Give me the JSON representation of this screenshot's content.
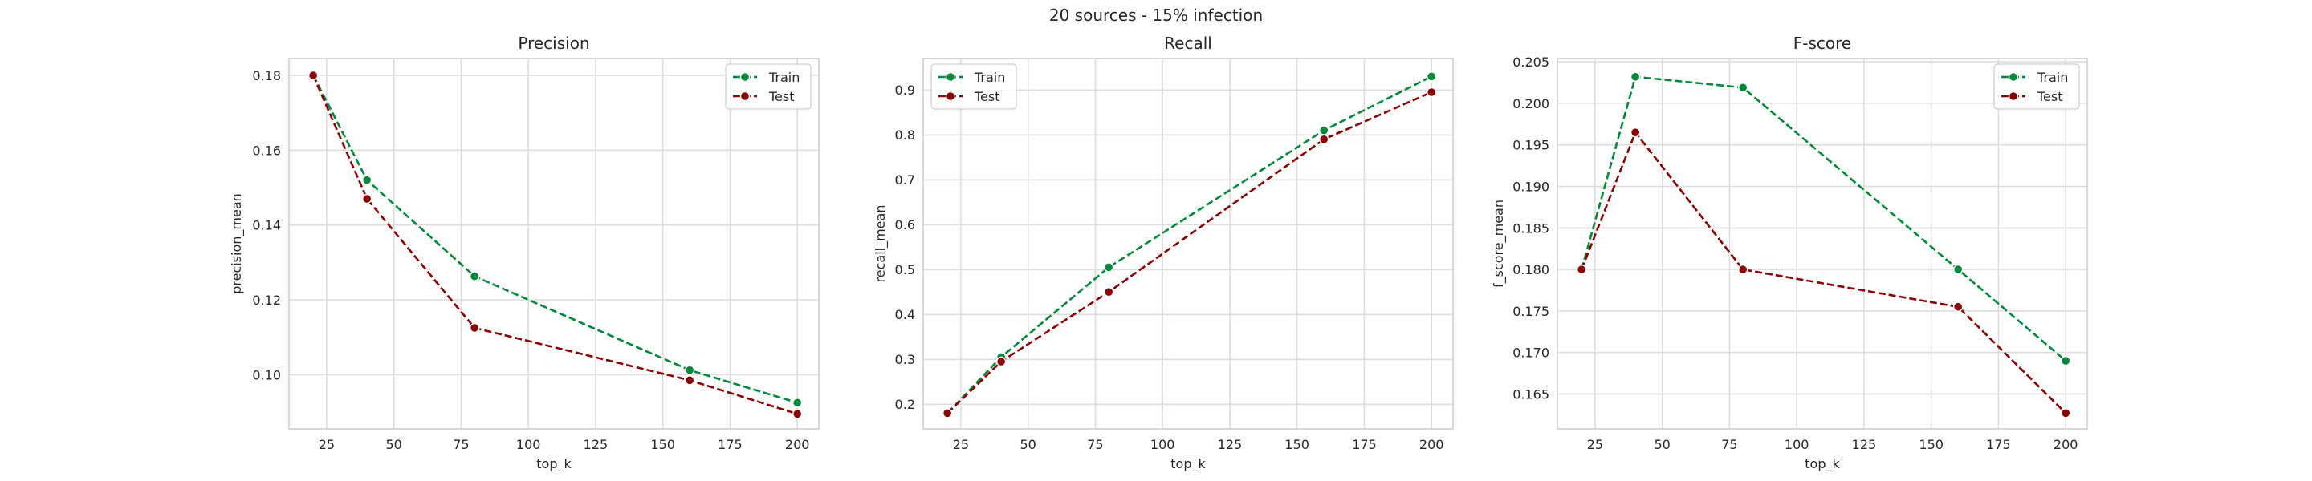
{
  "figure": {
    "suptitle": "20 sources - 15% infection"
  },
  "style": {
    "grid_color": "#dcdcdc",
    "spine_color": "#cccccc",
    "train_color": "#008a3a",
    "test_color": "#8b0000"
  },
  "chart_data": [
    {
      "type": "line",
      "title": "Precision",
      "xlabel": "top_k",
      "ylabel": "precision_mean",
      "x": [
        20,
        40,
        80,
        160,
        200
      ],
      "xlim": [
        11,
        208
      ],
      "ylim": [
        0.0855,
        0.1845
      ],
      "xticks": [
        25,
        50,
        75,
        100,
        125,
        150,
        175,
        200
      ],
      "yticks": [
        0.1,
        0.12,
        0.14,
        0.16,
        0.18
      ],
      "ytick_labels": [
        "0.10",
        "0.12",
        "0.14",
        "0.16",
        "0.18"
      ],
      "grid": true,
      "legend_position": "top-right",
      "series": [
        {
          "name": "Train",
          "values": [
            0.18,
            0.152,
            0.1263,
            0.1012,
            0.0925
          ]
        },
        {
          "name": "Test",
          "values": [
            0.18,
            0.147,
            0.1125,
            0.0985,
            0.0895
          ]
        }
      ]
    },
    {
      "type": "line",
      "title": "Recall",
      "xlabel": "top_k",
      "ylabel": "recall_mean",
      "x": [
        20,
        40,
        80,
        160,
        200
      ],
      "xlim": [
        11,
        208
      ],
      "ylim": [
        0.145,
        0.97
      ],
      "xticks": [
        25,
        50,
        75,
        100,
        125,
        150,
        175,
        200
      ],
      "yticks": [
        0.2,
        0.3,
        0.4,
        0.5,
        0.6,
        0.7,
        0.8,
        0.9
      ],
      "ytick_labels": [
        "0.2",
        "0.3",
        "0.4",
        "0.5",
        "0.6",
        "0.7",
        "0.8",
        "0.9"
      ],
      "grid": true,
      "legend_position": "top-left",
      "series": [
        {
          "name": "Train",
          "values": [
            0.18,
            0.305,
            0.505,
            0.81,
            0.93
          ]
        },
        {
          "name": "Test",
          "values": [
            0.18,
            0.295,
            0.45,
            0.79,
            0.895
          ]
        }
      ]
    },
    {
      "type": "line",
      "title": "F-score",
      "xlabel": "top_k",
      "ylabel": "f_score_mean",
      "x": [
        20,
        40,
        80,
        160,
        200
      ],
      "xlim": [
        11,
        208
      ],
      "ylim": [
        0.1608,
        0.2054
      ],
      "xticks": [
        25,
        50,
        75,
        100,
        125,
        150,
        175,
        200
      ],
      "yticks": [
        0.165,
        0.17,
        0.175,
        0.18,
        0.185,
        0.19,
        0.195,
        0.2,
        0.205
      ],
      "ytick_labels": [
        "0.165",
        "0.170",
        "0.175",
        "0.180",
        "0.185",
        "0.190",
        "0.195",
        "0.200",
        "0.205"
      ],
      "grid": true,
      "legend_position": "top-right",
      "series": [
        {
          "name": "Train",
          "values": [
            0.18,
            0.2032,
            0.2019,
            0.18,
            0.169
          ]
        },
        {
          "name": "Test",
          "values": [
            0.18,
            0.1965,
            0.18,
            0.1755,
            0.1627
          ]
        }
      ]
    }
  ]
}
